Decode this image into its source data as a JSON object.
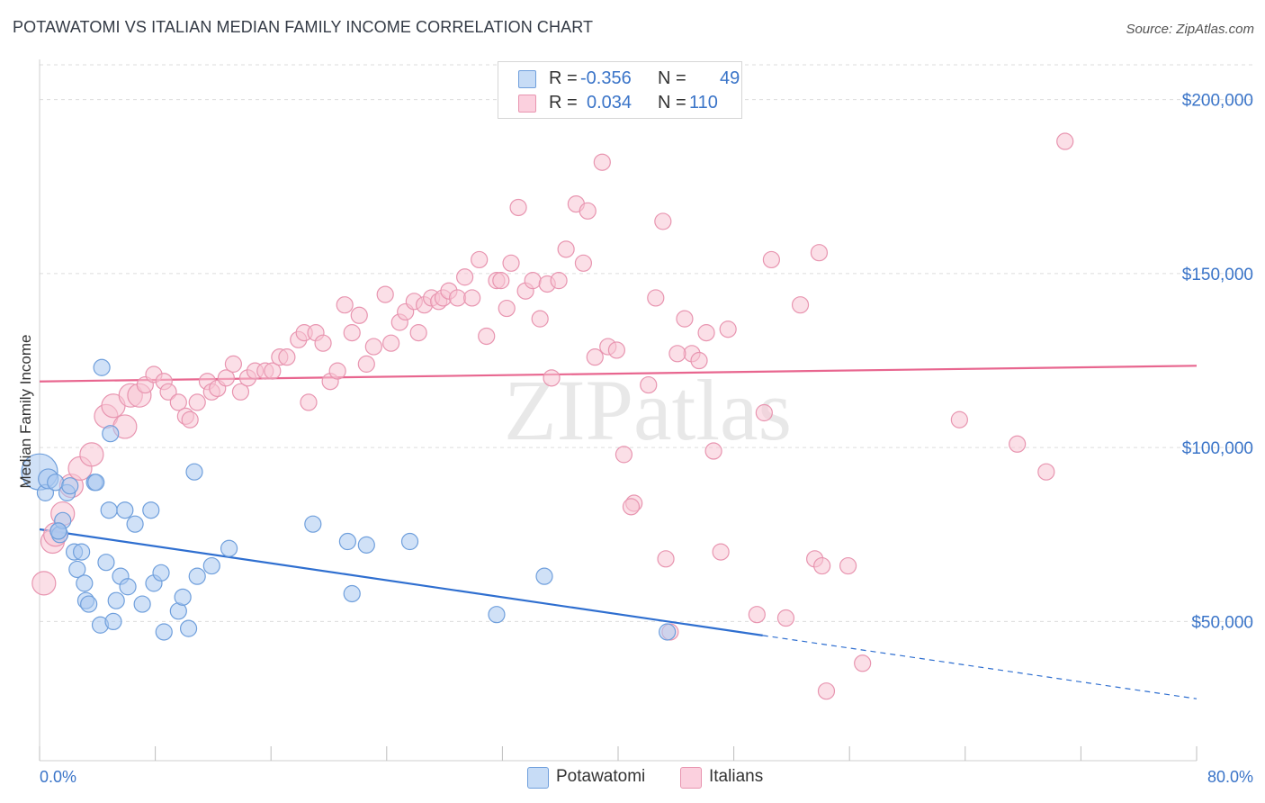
{
  "title": "POTAWATOMI VS ITALIAN MEDIAN FAMILY INCOME CORRELATION CHART",
  "source": "Source: ZipAtlas.com",
  "watermark": "ZIPatlas",
  "legend": {
    "rows": [
      {
        "r_label": "R =",
        "r_value": "-0.356",
        "n_label": "N =",
        "n_value": "49",
        "color": "#a9c8f0"
      },
      {
        "r_label": "R =",
        "r_value": "0.034",
        "n_label": "N =",
        "n_value": "110",
        "color": "#f7b8cc"
      }
    ]
  },
  "colors": {
    "potawatomi_fill": "#a9c8f0",
    "potawatomi_stroke": "#6f9fdc",
    "potawatomi_line": "#2f6fd0",
    "italians_fill": "#f7c4d4",
    "italians_stroke": "#e895b0",
    "italians_line": "#e8668f",
    "axis_label": "#3a74c8",
    "grid": "#dcdcdc"
  },
  "chart_data": {
    "type": "scatter",
    "title": "POTAWATOMI VS ITALIAN MEDIAN FAMILY INCOME CORRELATION CHART",
    "xlabel": "",
    "ylabel": "Median Family Income",
    "xlim": [
      0,
      80
    ],
    "ylim": [
      10000,
      210000
    ],
    "x_tick_labels": [
      "0.0%",
      "80.0%"
    ],
    "y_ticks": [
      50000,
      100000,
      150000,
      200000
    ],
    "y_tick_labels": [
      "$50,000",
      "$100,000",
      "$150,000",
      "$200,000"
    ],
    "grid": true,
    "legend_position": "top-center",
    "series": [
      {
        "name": "Potawatomi",
        "points": [
          [
            0,
            93000
          ],
          [
            0.4,
            87000
          ],
          [
            0.6,
            91000
          ],
          [
            1.1,
            90000
          ],
          [
            1.3,
            76000
          ],
          [
            1.4,
            75000
          ],
          [
            1.6,
            79000
          ],
          [
            1.9,
            87000
          ],
          [
            2.1,
            89000
          ],
          [
            2.4,
            70000
          ],
          [
            2.6,
            65000
          ],
          [
            2.9,
            70000
          ],
          [
            3.1,
            61000
          ],
          [
            3.2,
            56000
          ],
          [
            3.4,
            55000
          ],
          [
            3.8,
            90000
          ],
          [
            3.9,
            90000
          ],
          [
            4.2,
            49000
          ],
          [
            4.6,
            67000
          ],
          [
            4.8,
            82000
          ],
          [
            4.3,
            123000
          ],
          [
            4.9,
            104000
          ],
          [
            5.1,
            50000
          ],
          [
            5.3,
            56000
          ],
          [
            5.6,
            63000
          ],
          [
            5.9,
            82000
          ],
          [
            6.1,
            60000
          ],
          [
            6.6,
            78000
          ],
          [
            7.1,
            55000
          ],
          [
            7.7,
            82000
          ],
          [
            7.9,
            61000
          ],
          [
            8.4,
            64000
          ],
          [
            8.6,
            47000
          ],
          [
            9.6,
            53000
          ],
          [
            9.9,
            57000
          ],
          [
            10.3,
            48000
          ],
          [
            10.9,
            63000
          ],
          [
            10.7,
            93000
          ],
          [
            11.9,
            66000
          ],
          [
            13.1,
            71000
          ],
          [
            18.9,
            78000
          ],
          [
            21.3,
            73000
          ],
          [
            22.6,
            72000
          ],
          [
            21.6,
            58000
          ],
          [
            25.6,
            73000
          ],
          [
            31.6,
            52000
          ],
          [
            34.9,
            63000
          ],
          [
            43.4,
            47000
          ],
          [
            1.3,
            76000
          ]
        ],
        "trend": {
          "x": [
            0,
            50
          ],
          "y": [
            76500,
            46000
          ],
          "extension": {
            "x": [
              50,
              80
            ],
            "y": [
              46000,
              27800
            ]
          }
        }
      },
      {
        "name": "Italians",
        "points": [
          [
            0.3,
            61000
          ],
          [
            0.9,
            73000
          ],
          [
            1.1,
            75000
          ],
          [
            1.6,
            81000
          ],
          [
            2.2,
            89000
          ],
          [
            2.8,
            94000
          ],
          [
            3.6,
            98000
          ],
          [
            4.6,
            109000
          ],
          [
            5.1,
            112000
          ],
          [
            5.9,
            106000
          ],
          [
            6.3,
            115000
          ],
          [
            6.9,
            115000
          ],
          [
            7.3,
            118000
          ],
          [
            7.9,
            121000
          ],
          [
            8.6,
            119000
          ],
          [
            8.9,
            116000
          ],
          [
            9.6,
            113000
          ],
          [
            10.1,
            109000
          ],
          [
            10.4,
            108000
          ],
          [
            10.9,
            113000
          ],
          [
            11.6,
            119000
          ],
          [
            11.9,
            116000
          ],
          [
            12.3,
            117000
          ],
          [
            12.9,
            120000
          ],
          [
            13.4,
            124000
          ],
          [
            13.9,
            116000
          ],
          [
            14.4,
            120000
          ],
          [
            14.9,
            122000
          ],
          [
            15.6,
            122000
          ],
          [
            16.1,
            122000
          ],
          [
            16.6,
            126000
          ],
          [
            17.1,
            126000
          ],
          [
            17.9,
            131000
          ],
          [
            18.3,
            133000
          ],
          [
            18.6,
            113000
          ],
          [
            19.1,
            133000
          ],
          [
            19.6,
            130000
          ],
          [
            20.1,
            119000
          ],
          [
            20.6,
            122000
          ],
          [
            21.1,
            141000
          ],
          [
            21.6,
            133000
          ],
          [
            22.1,
            138000
          ],
          [
            22.6,
            124000
          ],
          [
            23.1,
            129000
          ],
          [
            23.9,
            144000
          ],
          [
            24.3,
            130000
          ],
          [
            24.9,
            136000
          ],
          [
            25.3,
            139000
          ],
          [
            25.9,
            142000
          ],
          [
            26.2,
            133000
          ],
          [
            26.6,
            141000
          ],
          [
            27.1,
            143000
          ],
          [
            27.6,
            142000
          ],
          [
            27.9,
            143000
          ],
          [
            28.3,
            145000
          ],
          [
            28.9,
            143000
          ],
          [
            29.4,
            149000
          ],
          [
            29.9,
            143000
          ],
          [
            30.4,
            154000
          ],
          [
            30.9,
            132000
          ],
          [
            31.6,
            148000
          ],
          [
            31.9,
            148000
          ],
          [
            32.3,
            140000
          ],
          [
            32.6,
            153000
          ],
          [
            33.1,
            169000
          ],
          [
            33.6,
            145000
          ],
          [
            34.1,
            148000
          ],
          [
            34.6,
            137000
          ],
          [
            35.1,
            147000
          ],
          [
            35.4,
            120000
          ],
          [
            35.9,
            148000
          ],
          [
            36.4,
            157000
          ],
          [
            37.1,
            170000
          ],
          [
            37.6,
            153000
          ],
          [
            37.9,
            168000
          ],
          [
            38.4,
            126000
          ],
          [
            38.9,
            182000
          ],
          [
            39.3,
            129000
          ],
          [
            39.9,
            128000
          ],
          [
            40.4,
            98000
          ],
          [
            41.1,
            84000
          ],
          [
            40.9,
            83000
          ],
          [
            42.1,
            118000
          ],
          [
            42.6,
            143000
          ],
          [
            43.1,
            165000
          ],
          [
            43.3,
            68000
          ],
          [
            44.6,
            137000
          ],
          [
            45.1,
            127000
          ],
          [
            45.6,
            125000
          ],
          [
            46.1,
            133000
          ],
          [
            46.6,
            99000
          ],
          [
            47.1,
            70000
          ],
          [
            47.6,
            134000
          ],
          [
            50.1,
            110000
          ],
          [
            50.6,
            154000
          ],
          [
            49.6,
            52000
          ],
          [
            51.6,
            51000
          ],
          [
            52.6,
            141000
          ],
          [
            53.6,
            68000
          ],
          [
            53.9,
            156000
          ],
          [
            54.1,
            66000
          ],
          [
            54.4,
            30000
          ],
          [
            55.9,
            66000
          ],
          [
            56.9,
            38000
          ],
          [
            63.6,
            108000
          ],
          [
            67.6,
            101000
          ],
          [
            69.6,
            93000
          ],
          [
            70.9,
            188000
          ],
          [
            43.6,
            47000
          ],
          [
            44.1,
            127000
          ]
        ],
        "trend": {
          "x": [
            0,
            80
          ],
          "y": [
            119000,
            123500
          ]
        }
      }
    ]
  }
}
